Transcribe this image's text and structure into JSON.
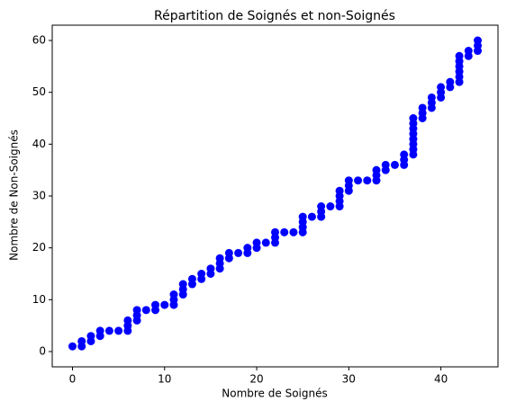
{
  "chart_data": {
    "type": "scatter",
    "title": "Répartition de Soignés et non-Soignés",
    "xlabel": "Nombre de Soignés",
    "ylabel": "Nombre de Non-Soignés",
    "color": "#0000ff",
    "x": [
      0,
      1,
      1,
      2,
      2,
      3,
      3,
      4,
      5,
      6,
      6,
      6,
      7,
      7,
      7,
      8,
      9,
      9,
      10,
      11,
      11,
      11,
      12,
      12,
      12,
      13,
      13,
      14,
      14,
      15,
      15,
      16,
      16,
      16,
      17,
      17,
      18,
      19,
      19,
      20,
      20,
      21,
      22,
      22,
      22,
      23,
      24,
      25,
      25,
      25,
      25,
      26,
      27,
      27,
      27,
      28,
      29,
      29,
      29,
      29,
      30,
      30,
      30,
      31,
      32,
      33,
      33,
      33,
      34,
      34,
      35,
      36,
      36,
      36,
      37,
      37,
      37,
      37,
      37,
      37,
      37,
      37,
      38,
      38,
      38,
      39,
      39,
      39,
      40,
      40,
      40,
      41,
      41,
      42,
      42,
      42,
      42,
      42,
      42,
      43,
      43,
      44,
      44,
      44
    ],
    "values": [
      1,
      1,
      2,
      2,
      3,
      3,
      4,
      4,
      4,
      4,
      5,
      6,
      6,
      7,
      8,
      8,
      8,
      9,
      9,
      9,
      10,
      11,
      11,
      12,
      13,
      13,
      14,
      14,
      15,
      15,
      16,
      16,
      17,
      18,
      18,
      19,
      19,
      19,
      20,
      20,
      21,
      21,
      21,
      22,
      23,
      23,
      23,
      23,
      24,
      25,
      26,
      26,
      26,
      27,
      28,
      28,
      28,
      29,
      30,
      31,
      31,
      32,
      33,
      33,
      33,
      33,
      34,
      35,
      35,
      36,
      36,
      36,
      37,
      38,
      38,
      39,
      40,
      41,
      42,
      43,
      44,
      45,
      45,
      46,
      47,
      47,
      48,
      49,
      49,
      50,
      51,
      51,
      52,
      52,
      53,
      54,
      55,
      56,
      57,
      57,
      58,
      58,
      59,
      60
    ],
    "xlim": [
      -2.2,
      46.2
    ],
    "xticks": [
      0,
      10,
      20,
      30,
      40
    ],
    "ylim": [
      -2.95,
      62.95
    ],
    "yticks": [
      0,
      10,
      20,
      30,
      40,
      50,
      60
    ]
  }
}
